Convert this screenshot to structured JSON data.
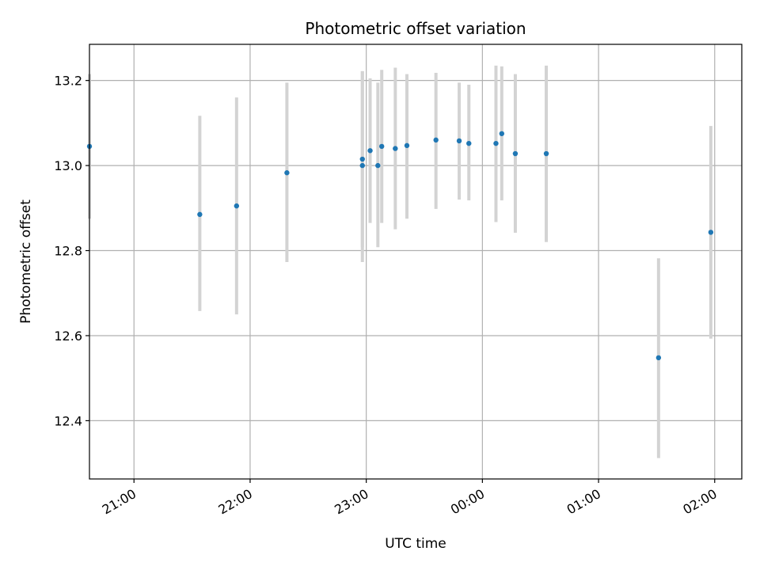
{
  "chart_data": {
    "type": "scatter",
    "title": "Photometric offset variation",
    "xlabel": "UTC time",
    "ylabel": "Photometric offset",
    "x_unit": "UTC hour:minute",
    "xlim": [
      "20:37",
      "02:14"
    ],
    "ylim": [
      12.263,
      13.285
    ],
    "x_ticks": [
      "21:00",
      "22:00",
      "23:00",
      "00:00",
      "01:00",
      "02:00"
    ],
    "y_ticks": [
      "12.4",
      "12.6",
      "12.8",
      "13.0",
      "13.2"
    ],
    "grid": true,
    "colors": {
      "point": "#1f77b4",
      "errorbar": "#d3d3d3",
      "grid": "#b0b0b0"
    },
    "points": [
      {
        "x": "20:37",
        "y": 13.045,
        "yerr_low": 12.875,
        "yerr_high": 13.215
      },
      {
        "x": "21:34",
        "y": 12.885,
        "yerr_low": 12.658,
        "yerr_high": 13.117
      },
      {
        "x": "21:53",
        "y": 12.905,
        "yerr_low": 12.65,
        "yerr_high": 13.16
      },
      {
        "x": "22:19",
        "y": 12.983,
        "yerr_low": 12.773,
        "yerr_high": 13.195
      },
      {
        "x": "22:58",
        "y": 13.015,
        "yerr_low": 12.808,
        "yerr_high": 13.222
      },
      {
        "x": "22:58",
        "y": 13.0,
        "yerr_low": 12.773,
        "yerr_high": 13.222
      },
      {
        "x": "23:02",
        "y": 13.035,
        "yerr_low": 12.865,
        "yerr_high": 13.205
      },
      {
        "x": "23:06",
        "y": 13.0,
        "yerr_low": 12.808,
        "yerr_high": 13.195
      },
      {
        "x": "23:08",
        "y": 13.045,
        "yerr_low": 12.865,
        "yerr_high": 13.225
      },
      {
        "x": "23:15",
        "y": 13.04,
        "yerr_low": 12.85,
        "yerr_high": 13.23
      },
      {
        "x": "23:21",
        "y": 13.047,
        "yerr_low": 12.875,
        "yerr_high": 13.215
      },
      {
        "x": "23:36",
        "y": 13.06,
        "yerr_low": 12.898,
        "yerr_high": 13.218
      },
      {
        "x": "23:48",
        "y": 13.058,
        "yerr_low": 12.92,
        "yerr_high": 13.195
      },
      {
        "x": "23:53",
        "y": 13.052,
        "yerr_low": 12.918,
        "yerr_high": 13.19
      },
      {
        "x": "00:07",
        "y": 13.052,
        "yerr_low": 12.867,
        "yerr_high": 13.235
      },
      {
        "x": "00:10",
        "y": 13.075,
        "yerr_low": 12.918,
        "yerr_high": 13.233
      },
      {
        "x": "00:17",
        "y": 13.028,
        "yerr_low": 12.842,
        "yerr_high": 13.215
      },
      {
        "x": "00:33",
        "y": 13.028,
        "yerr_low": 12.82,
        "yerr_high": 13.235
      },
      {
        "x": "01:31",
        "y": 12.548,
        "yerr_low": 12.312,
        "yerr_high": 12.782
      },
      {
        "x": "01:58",
        "y": 12.843,
        "yerr_low": 12.593,
        "yerr_high": 13.093
      }
    ]
  }
}
